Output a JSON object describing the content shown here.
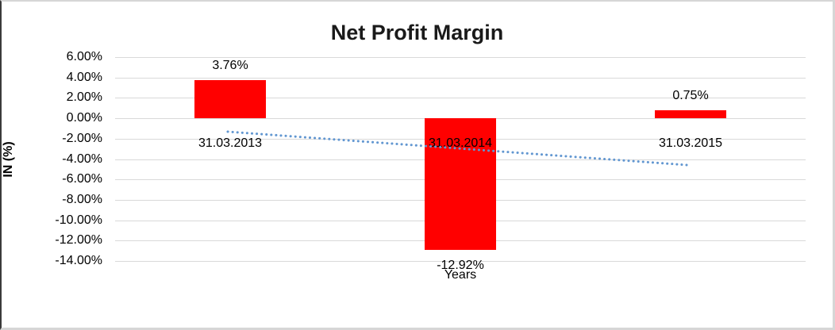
{
  "chart_data": {
    "type": "bar",
    "title": "Net Profit Margin",
    "xlabel": "Years",
    "ylabel": "IN (%)",
    "categories": [
      "31.03.2013",
      "31.03.2014",
      "31.03.2015"
    ],
    "values": [
      3.76,
      -12.92,
      0.75
    ],
    "data_labels": [
      "3.76%",
      "-12.92%",
      "0.75%"
    ],
    "ytick_labels": [
      "6.00%",
      "4.00%",
      "2.00%",
      "0.00%",
      "-2.00%",
      "-4.00%",
      "-6.00%",
      "-8.00%",
      "-10.00%",
      "-12.00%",
      "-14.00%"
    ],
    "ylim": [
      -14,
      6
    ],
    "ytick_step": 2,
    "grid": true,
    "legend": false,
    "bar_color": "#FF0000",
    "gridline_color": "#d9d9d9",
    "trendline": {
      "style": "dotted",
      "color": "#6297d1",
      "start_value_pct": -1.3,
      "end_value_pct": -4.6
    }
  }
}
